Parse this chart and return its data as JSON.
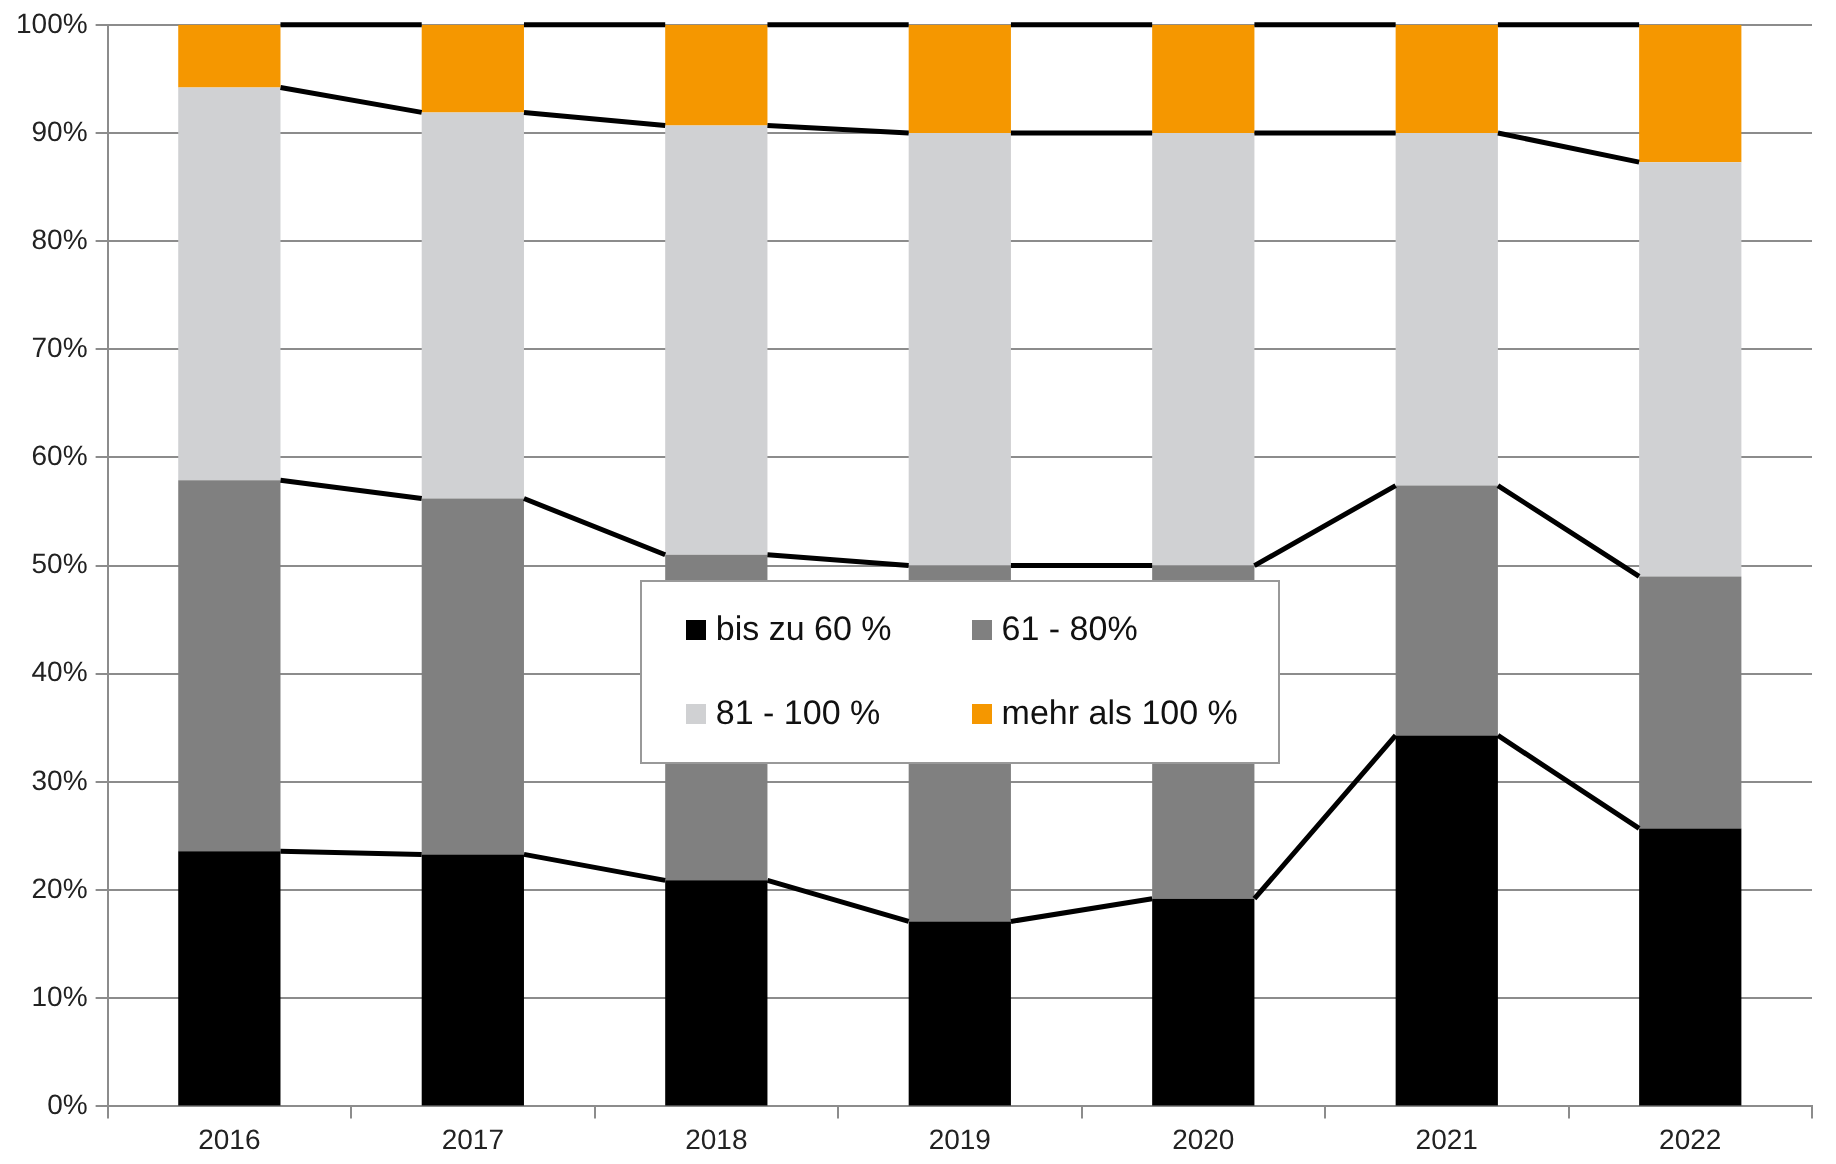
{
  "chart_data": {
    "type": "bar",
    "stacked": true,
    "categories": [
      "2016",
      "2017",
      "2018",
      "2019",
      "2020",
      "2021",
      "2022"
    ],
    "series": [
      {
        "name": "bis zu 60 %",
        "color": "#000000",
        "values": [
          23.6,
          23.3,
          20.9,
          17.1,
          19.2,
          34.3,
          25.7
        ]
      },
      {
        "name": "61 - 80%",
        "color": "#808080",
        "values": [
          34.3,
          32.9,
          30.1,
          32.9,
          30.8,
          23.1,
          23.3
        ]
      },
      {
        "name": "81 - 100 %",
        "color": "#d0d1d3",
        "values": [
          36.3,
          35.7,
          39.7,
          40.0,
          40.0,
          32.6,
          38.3
        ]
      },
      {
        "name": "mehr als 100 %",
        "color": "#f59700",
        "values": [
          5.8,
          8.1,
          9.3,
          10.0,
          10.0,
          10.0,
          12.7
        ]
      }
    ],
    "ylim": [
      0,
      100
    ],
    "yticks": [
      {
        "value": 0,
        "label": "0%"
      },
      {
        "value": 10,
        "label": "10%"
      },
      {
        "value": 20,
        "label": "20%"
      },
      {
        "value": 30,
        "label": "30%"
      },
      {
        "value": 40,
        "label": "40%"
      },
      {
        "value": 50,
        "label": "50%"
      },
      {
        "value": 60,
        "label": "60%"
      },
      {
        "value": 70,
        "label": "70%"
      },
      {
        "value": 80,
        "label": "80%"
      },
      {
        "value": 90,
        "label": "90%"
      },
      {
        "value": 100,
        "label": "100%"
      }
    ],
    "grid": "y",
    "legend": "center"
  }
}
